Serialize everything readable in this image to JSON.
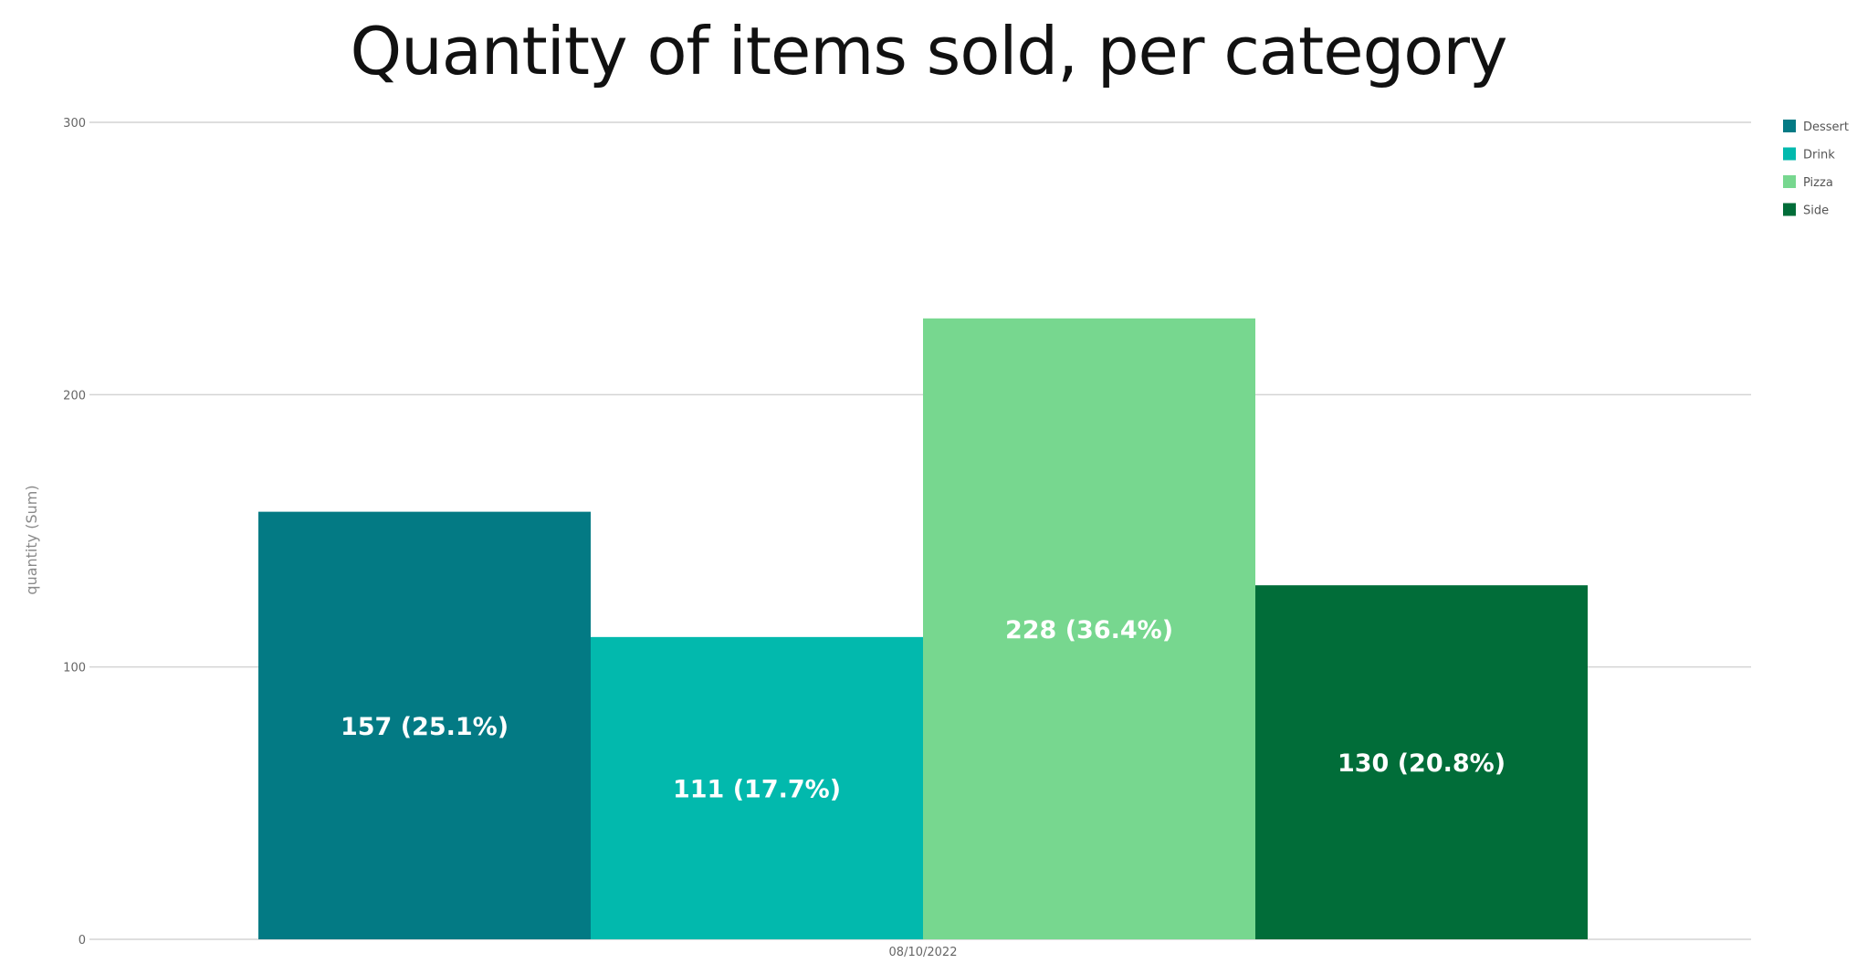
{
  "chart_data": {
    "type": "bar",
    "title": "Quantity of items sold, per category",
    "xlabel": "",
    "ylabel": "quantity (Sum)",
    "categories": [
      "08/10/2022"
    ],
    "series": [
      {
        "name": "Dessert",
        "values": [
          157
        ],
        "label": "157 (25.1%)",
        "color": "#037a84"
      },
      {
        "name": "Drink",
        "values": [
          111
        ],
        "label": "111 (17.7%)",
        "color": "#02b9ad"
      },
      {
        "name": "Pizza",
        "values": [
          228
        ],
        "label": "228 (36.4%)",
        "color": "#77d78f"
      },
      {
        "name": "Side",
        "values": [
          130
        ],
        "label": "130 (20.8%)",
        "color": "#016d39"
      }
    ],
    "y_ticks": [
      "0",
      "100",
      "200",
      "300"
    ],
    "ylim": [
      0,
      300
    ],
    "grid": true,
    "legend_position": "top-right"
  }
}
